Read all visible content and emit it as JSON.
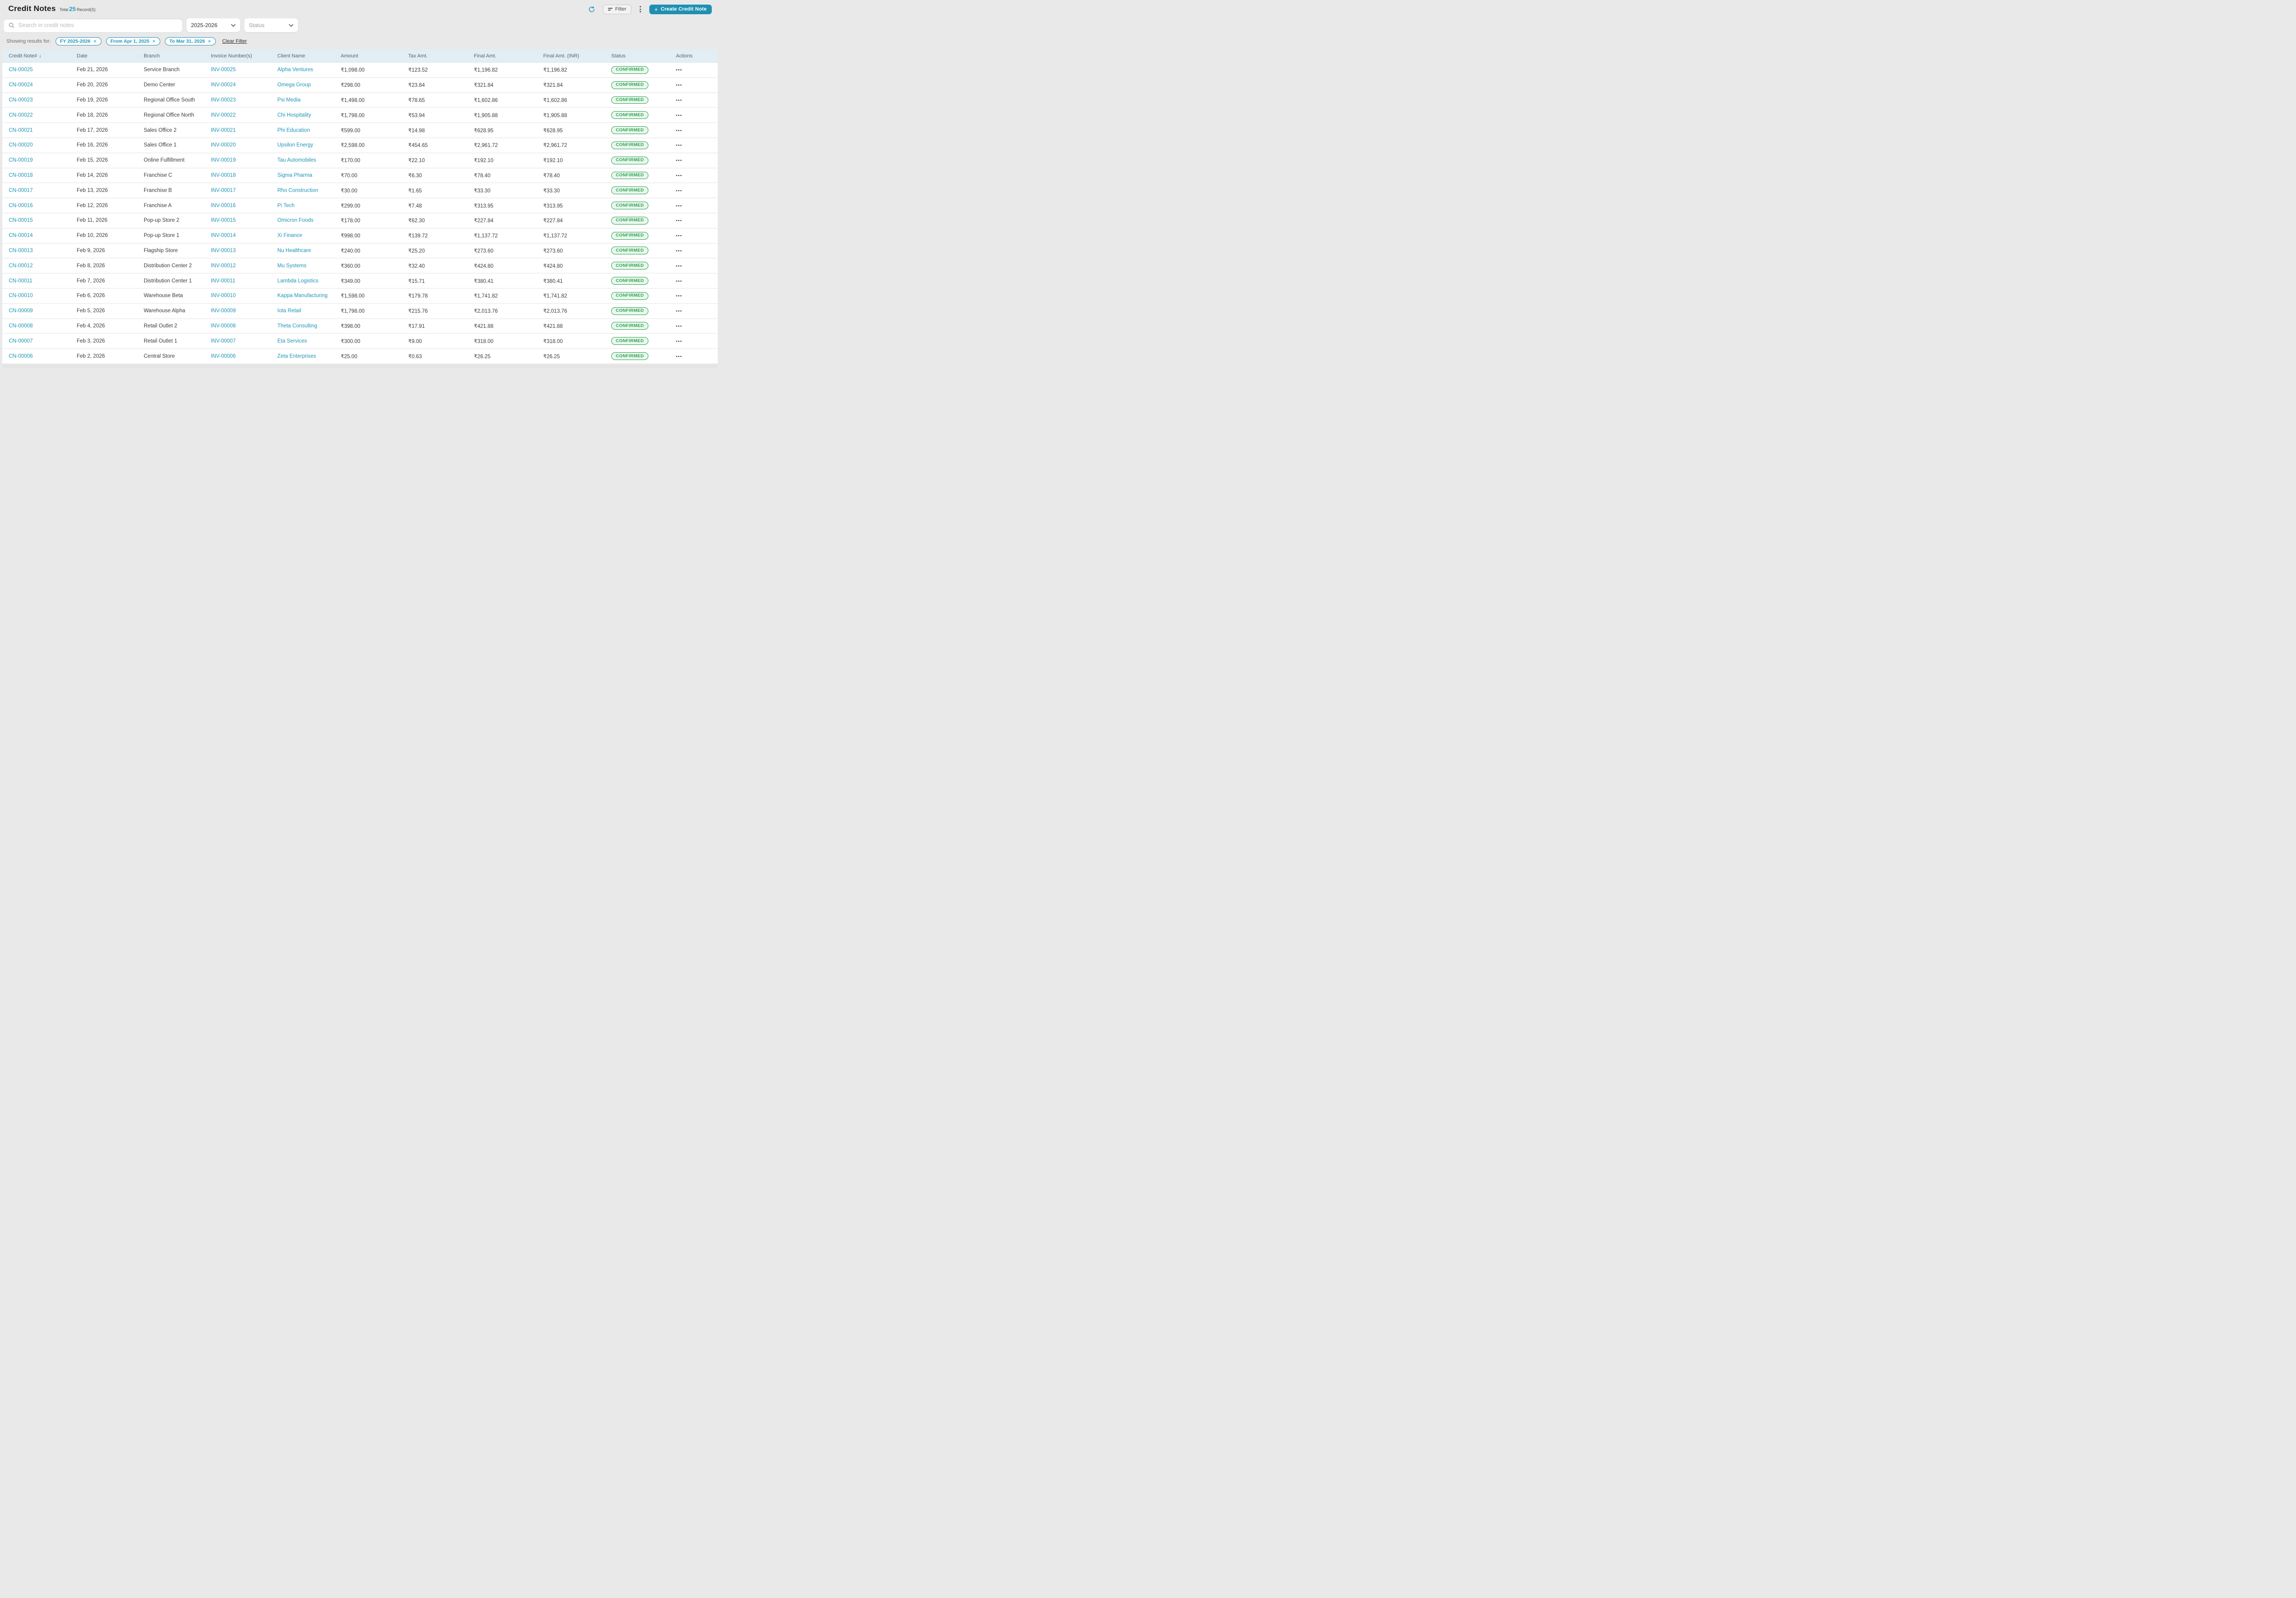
{
  "colors": {
    "accent": "#2095b7",
    "create_button": "#1f90b2",
    "status_green": "#2aa24d",
    "status_green_bg": "#eaf7ee",
    "table_header_bg": "#e2eef3"
  },
  "header": {
    "title": "Credit Notes",
    "total_prefix": "Total",
    "total_count": "25",
    "total_suffix": "Record(S)",
    "filter_label": "Filter",
    "create_plus": "+",
    "create_label": "Create Credit Note"
  },
  "toolbar": {
    "search_placeholder": "Search in credit notes",
    "fiscal_year_value": "2025-2026",
    "status_placeholder": "Status"
  },
  "filters": {
    "showing_label": "Showing results for:",
    "chips": [
      "FY 2025-2026",
      "From Apr 1, 2025",
      "To Mar 31, 2026"
    ],
    "chip_close": "✕",
    "clear_label": "Clear Filter"
  },
  "table": {
    "columns": [
      "Credit Note#",
      "Date",
      "Branch",
      "Invoice Number(s)",
      "Client Name",
      "Amount",
      "Tax Amt.",
      "Final Amt.",
      "Final Amt. (INR)",
      "Status",
      "Actions"
    ],
    "sort_icon": "↓",
    "actions_glyph": "•••",
    "rows": [
      {
        "credit_note": "CN-00025",
        "date": "Feb 21, 2026",
        "branch": "Service Branch",
        "invoice": "INV-00025",
        "client": "Alpha Ventures",
        "amount": "₹1,098.00",
        "tax": "₹123.52",
        "final": "₹1,196.82",
        "final_inr": "₹1,196.82",
        "status": "CONFIRMED"
      },
      {
        "credit_note": "CN-00024",
        "date": "Feb 20, 2026",
        "branch": "Demo Center",
        "invoice": "INV-00024",
        "client": "Omega Group",
        "amount": "₹298.00",
        "tax": "₹23.84",
        "final": "₹321.84",
        "final_inr": "₹321.84",
        "status": "CONFIRMED"
      },
      {
        "credit_note": "CN-00023",
        "date": "Feb 19, 2026",
        "branch": "Regional Office South",
        "invoice": "INV-00023",
        "client": "Psi Media",
        "amount": "₹1,498.00",
        "tax": "₹78.65",
        "final": "₹1,602.86",
        "final_inr": "₹1,602.86",
        "status": "CONFIRMED"
      },
      {
        "credit_note": "CN-00022",
        "date": "Feb 18, 2026",
        "branch": "Regional Office North",
        "invoice": "INV-00022",
        "client": "Chi Hospitality",
        "amount": "₹1,798.00",
        "tax": "₹53.94",
        "final": "₹1,905.88",
        "final_inr": "₹1,905.88",
        "status": "CONFIRMED"
      },
      {
        "credit_note": "CN-00021",
        "date": "Feb 17, 2026",
        "branch": "Sales Office 2",
        "invoice": "INV-00021",
        "client": "Phi Education",
        "amount": "₹599.00",
        "tax": "₹14.98",
        "final": "₹628.95",
        "final_inr": "₹628.95",
        "status": "CONFIRMED"
      },
      {
        "credit_note": "CN-00020",
        "date": "Feb 16, 2026",
        "branch": "Sales Office 1",
        "invoice": "INV-00020",
        "client": "Upsilon Energy",
        "amount": "₹2,598.00",
        "tax": "₹454.65",
        "final": "₹2,961.72",
        "final_inr": "₹2,961.72",
        "status": "CONFIRMED"
      },
      {
        "credit_note": "CN-00019",
        "date": "Feb 15, 2026",
        "branch": "Online Fulfillment",
        "invoice": "INV-00019",
        "client": "Tau Automobiles",
        "amount": "₹170.00",
        "tax": "₹22.10",
        "final": "₹192.10",
        "final_inr": "₹192.10",
        "status": "CONFIRMED"
      },
      {
        "credit_note": "CN-00018",
        "date": "Feb 14, 2026",
        "branch": "Franchise C",
        "invoice": "INV-00018",
        "client": "Sigma Pharma",
        "amount": "₹70.00",
        "tax": "₹6.30",
        "final": "₹78.40",
        "final_inr": "₹78.40",
        "status": "CONFIRMED"
      },
      {
        "credit_note": "CN-00017",
        "date": "Feb 13, 2026",
        "branch": "Franchise B",
        "invoice": "INV-00017",
        "client": "Rho Construction",
        "amount": "₹30.00",
        "tax": "₹1.65",
        "final": "₹33.30",
        "final_inr": "₹33.30",
        "status": "CONFIRMED"
      },
      {
        "credit_note": "CN-00016",
        "date": "Feb 12, 2026",
        "branch": "Franchise A",
        "invoice": "INV-00016",
        "client": "Pi Tech",
        "amount": "₹299.00",
        "tax": "₹7.48",
        "final": "₹313.95",
        "final_inr": "₹313.95",
        "status": "CONFIRMED"
      },
      {
        "credit_note": "CN-00015",
        "date": "Feb 11, 2026",
        "branch": "Pop-up Store 2",
        "invoice": "INV-00015",
        "client": "Omicron Foods",
        "amount": "₹178.00",
        "tax": "₹62.30",
        "final": "₹227.84",
        "final_inr": "₹227.84",
        "status": "CONFIRMED"
      },
      {
        "credit_note": "CN-00014",
        "date": "Feb 10, 2026",
        "branch": "Pop-up Store 1",
        "invoice": "INV-00014",
        "client": "Xi Finance",
        "amount": "₹998.00",
        "tax": "₹139.72",
        "final": "₹1,137.72",
        "final_inr": "₹1,137.72",
        "status": "CONFIRMED"
      },
      {
        "credit_note": "CN-00013",
        "date": "Feb 9, 2026",
        "branch": "Flagship Store",
        "invoice": "INV-00013",
        "client": "Nu Healthcare",
        "amount": "₹240.00",
        "tax": "₹25.20",
        "final": "₹273.60",
        "final_inr": "₹273.60",
        "status": "CONFIRMED"
      },
      {
        "credit_note": "CN-00012",
        "date": "Feb 8, 2026",
        "branch": "Distribution Center 2",
        "invoice": "INV-00012",
        "client": "Mu Systems",
        "amount": "₹360.00",
        "tax": "₹32.40",
        "final": "₹424.80",
        "final_inr": "₹424.80",
        "status": "CONFIRMED"
      },
      {
        "credit_note": "CN-00011",
        "date": "Feb 7, 2026",
        "branch": "Distribution Center 1",
        "invoice": "INV-00011",
        "client": "Lambda Logistics",
        "amount": "₹349.00",
        "tax": "₹15.71",
        "final": "₹380.41",
        "final_inr": "₹380.41",
        "status": "CONFIRMED"
      },
      {
        "credit_note": "CN-00010",
        "date": "Feb 6, 2026",
        "branch": "Warehouse Beta",
        "invoice": "INV-00010",
        "client": "Kappa Manufacturing",
        "amount": "₹1,598.00",
        "tax": "₹179.78",
        "final": "₹1,741.82",
        "final_inr": "₹1,741.82",
        "status": "CONFIRMED"
      },
      {
        "credit_note": "CN-00009",
        "date": "Feb 5, 2026",
        "branch": "Warehouse Alpha",
        "invoice": "INV-00009",
        "client": "Iota Retail",
        "amount": "₹1,798.00",
        "tax": "₹215.76",
        "final": "₹2,013.76",
        "final_inr": "₹2,013.76",
        "status": "CONFIRMED"
      },
      {
        "credit_note": "CN-00008",
        "date": "Feb 4, 2026",
        "branch": "Retail Outlet 2",
        "invoice": "INV-00008",
        "client": "Theta Consulting",
        "amount": "₹398.00",
        "tax": "₹17.91",
        "final": "₹421.88",
        "final_inr": "₹421.88",
        "status": "CONFIRMED"
      },
      {
        "credit_note": "CN-00007",
        "date": "Feb 3, 2026",
        "branch": "Retail Outlet 1",
        "invoice": "INV-00007",
        "client": "Eta Services",
        "amount": "₹300.00",
        "tax": "₹9.00",
        "final": "₹318.00",
        "final_inr": "₹318.00",
        "status": "CONFIRMED"
      },
      {
        "credit_note": "CN-00006",
        "date": "Feb 2, 2026",
        "branch": "Central Store",
        "invoice": "INV-00006",
        "client": "Zeta Enterprises",
        "amount": "₹25.00",
        "tax": "₹0.63",
        "final": "₹26.25",
        "final_inr": "₹26.25",
        "status": "CONFIRMED"
      }
    ]
  }
}
